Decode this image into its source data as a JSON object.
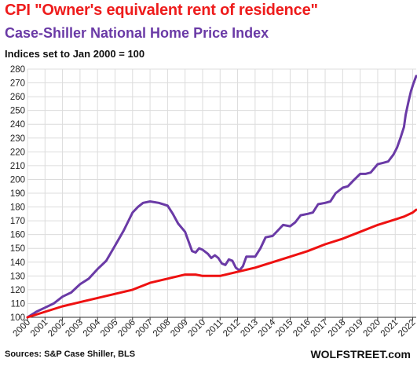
{
  "titles": {
    "line1": "CPI \"Owner's equivalent rent of residence\"",
    "line2": "Case-Shiller  National  Home Price  Index",
    "line3": "Indices set to Jan 2000 = 100"
  },
  "footer": {
    "source": "Sources: S&P Case Shiller, BLS",
    "brand": "WOLFSTREET.com"
  },
  "chart_data": {
    "type": "line",
    "ylim": [
      100,
      280
    ],
    "yticks": [
      100,
      110,
      120,
      130,
      140,
      150,
      160,
      170,
      180,
      190,
      200,
      210,
      220,
      230,
      240,
      250,
      260,
      270,
      280
    ],
    "xlim": [
      2000,
      2022.2
    ],
    "xtick_labels": [
      "2000",
      "2001",
      "2002",
      "2003",
      "2004",
      "2005",
      "2006",
      "2007",
      "2008",
      "2009",
      "2010",
      "2011",
      "2012",
      "2013",
      "2014",
      "2015",
      "2016",
      "2017",
      "2018",
      "2019",
      "2020",
      "2021",
      "2022"
    ],
    "grid": true,
    "series": [
      {
        "color": "#6a3aa6",
        "points": [
          [
            2000.0,
            100
          ],
          [
            2000.5,
            104
          ],
          [
            2001.0,
            107
          ],
          [
            2001.5,
            110
          ],
          [
            2002.0,
            115
          ],
          [
            2002.5,
            118
          ],
          [
            2003.0,
            124
          ],
          [
            2003.5,
            128
          ],
          [
            2004.0,
            135
          ],
          [
            2004.5,
            141
          ],
          [
            2005.0,
            152
          ],
          [
            2005.5,
            163
          ],
          [
            2006.0,
            176
          ],
          [
            2006.3,
            180
          ],
          [
            2006.6,
            183
          ],
          [
            2007.0,
            184
          ],
          [
            2007.5,
            183
          ],
          [
            2008.0,
            181
          ],
          [
            2008.3,
            175
          ],
          [
            2008.6,
            168
          ],
          [
            2009.0,
            162
          ],
          [
            2009.2,
            155
          ],
          [
            2009.4,
            148
          ],
          [
            2009.6,
            147
          ],
          [
            2009.8,
            150
          ],
          [
            2010.0,
            149
          ],
          [
            2010.3,
            146
          ],
          [
            2010.5,
            143
          ],
          [
            2010.7,
            145
          ],
          [
            2010.9,
            143
          ],
          [
            2011.1,
            139
          ],
          [
            2011.3,
            138
          ],
          [
            2011.5,
            142
          ],
          [
            2011.7,
            141
          ],
          [
            2011.9,
            136
          ],
          [
            2012.1,
            134
          ],
          [
            2012.3,
            137
          ],
          [
            2012.5,
            144
          ],
          [
            2012.8,
            144
          ],
          [
            2013.0,
            144
          ],
          [
            2013.3,
            150
          ],
          [
            2013.6,
            158
          ],
          [
            2014.0,
            159
          ],
          [
            2014.3,
            163
          ],
          [
            2014.6,
            167
          ],
          [
            2015.0,
            166
          ],
          [
            2015.3,
            169
          ],
          [
            2015.6,
            174
          ],
          [
            2016.0,
            175
          ],
          [
            2016.3,
            176
          ],
          [
            2016.6,
            182
          ],
          [
            2017.0,
            183
          ],
          [
            2017.3,
            184
          ],
          [
            2017.6,
            190
          ],
          [
            2018.0,
            194
          ],
          [
            2018.3,
            195
          ],
          [
            2018.6,
            199
          ],
          [
            2019.0,
            204
          ],
          [
            2019.3,
            204
          ],
          [
            2019.6,
            205
          ],
          [
            2020.0,
            211
          ],
          [
            2020.3,
            212
          ],
          [
            2020.6,
            213
          ],
          [
            2020.9,
            218
          ],
          [
            2021.1,
            223
          ],
          [
            2021.3,
            230
          ],
          [
            2021.5,
            238
          ],
          [
            2021.6,
            247
          ],
          [
            2021.75,
            256
          ],
          [
            2021.9,
            264
          ],
          [
            2022.05,
            270
          ],
          [
            2022.2,
            275
          ]
        ]
      },
      {
        "color": "#ee1111",
        "points": [
          [
            2000.0,
            100
          ],
          [
            2001.0,
            104
          ],
          [
            2002.0,
            108
          ],
          [
            2003.0,
            111
          ],
          [
            2004.0,
            114
          ],
          [
            2005.0,
            117
          ],
          [
            2006.0,
            120
          ],
          [
            2007.0,
            125
          ],
          [
            2008.0,
            128
          ],
          [
            2009.0,
            131
          ],
          [
            2009.6,
            131
          ],
          [
            2010.0,
            130
          ],
          [
            2011.0,
            130
          ],
          [
            2012.0,
            133
          ],
          [
            2013.0,
            136
          ],
          [
            2014.0,
            140
          ],
          [
            2015.0,
            144
          ],
          [
            2016.0,
            148
          ],
          [
            2017.0,
            153
          ],
          [
            2018.0,
            157
          ],
          [
            2019.0,
            162
          ],
          [
            2020.0,
            167
          ],
          [
            2021.0,
            171
          ],
          [
            2021.5,
            173
          ],
          [
            2022.0,
            176
          ],
          [
            2022.2,
            178
          ]
        ]
      }
    ]
  }
}
